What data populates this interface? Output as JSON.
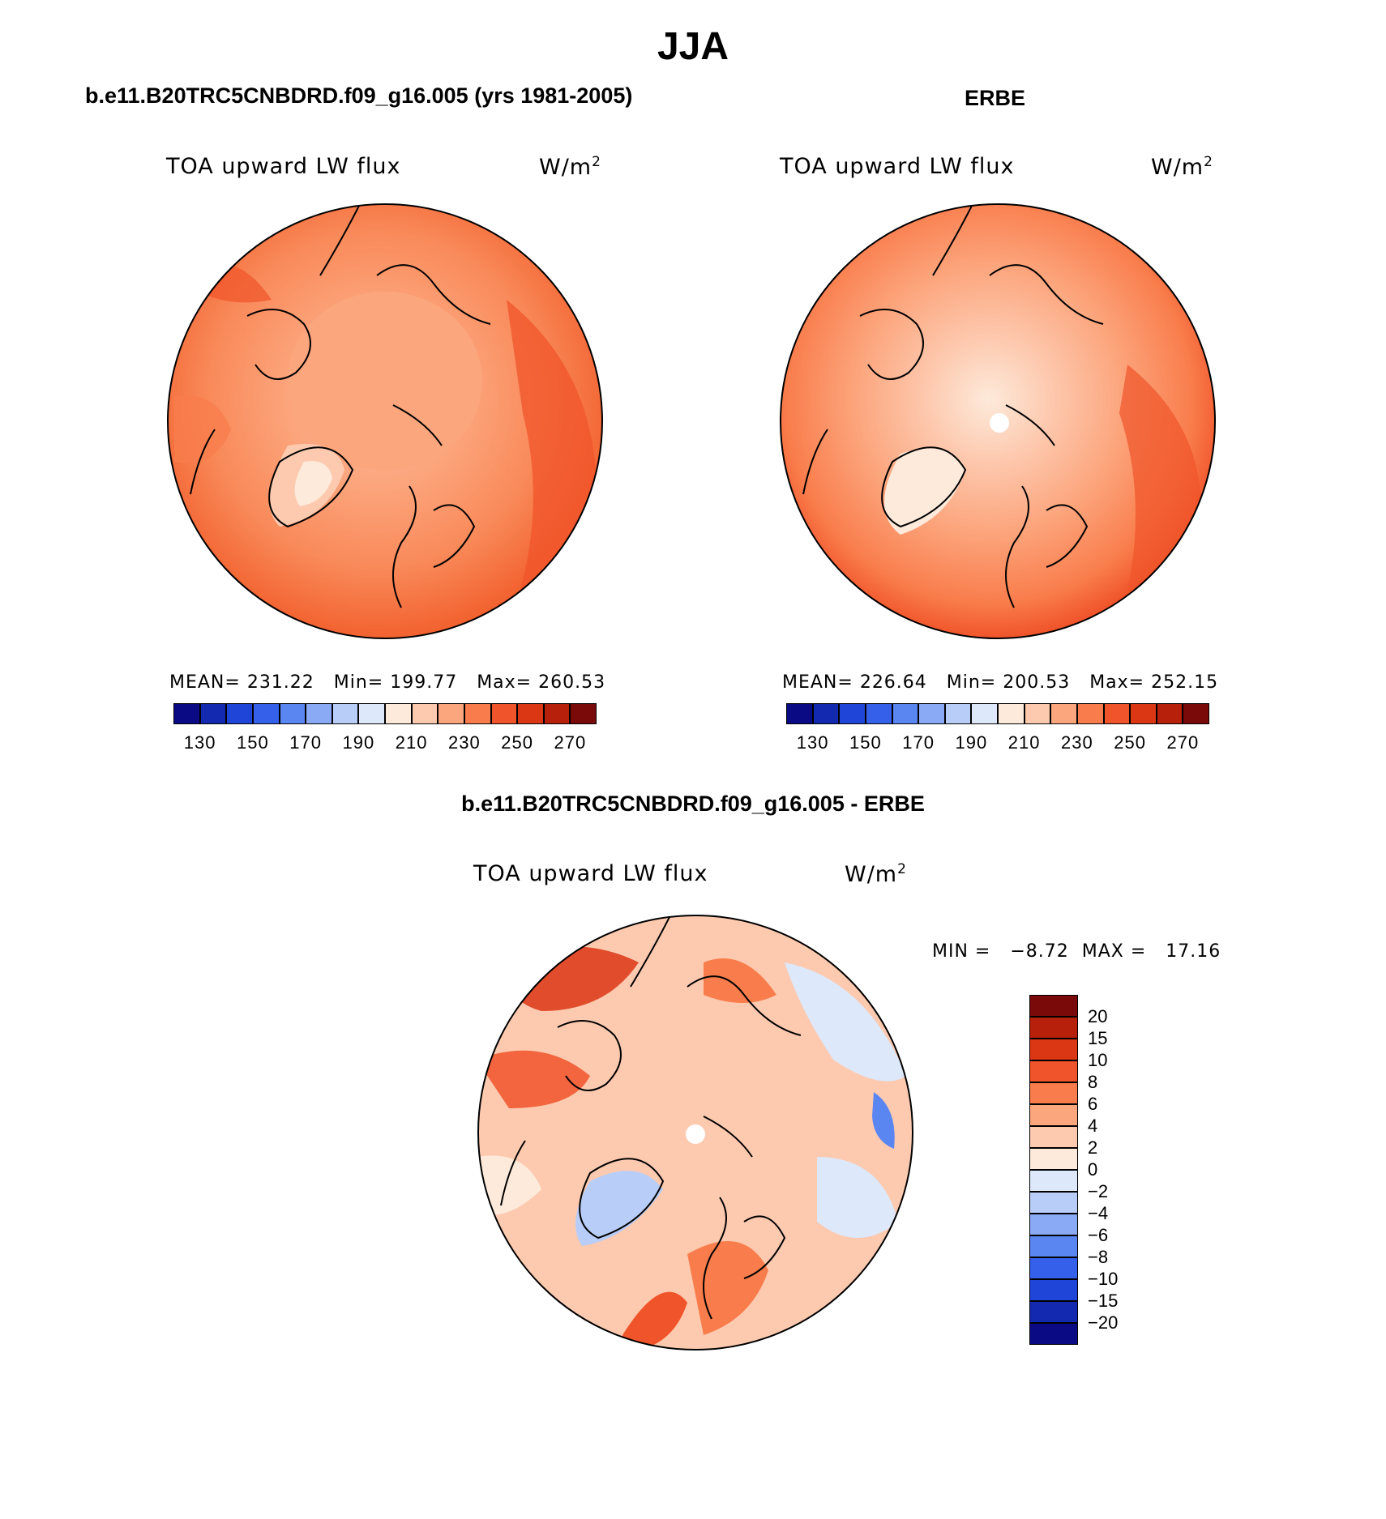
{
  "figure": {
    "title": "JJA"
  },
  "panels": {
    "model": {
      "title": "b.e11.B20TRC5CNBDRD.f09_g16.005 (yrs 1981-2005)",
      "variable": "TOA upward LW flux",
      "units_base": "W/m",
      "units_exp": "2",
      "stats": "MEAN= 231.22   Min= 199.77   Max= 260.53"
    },
    "obs": {
      "title": "ERBE",
      "variable": "TOA upward LW flux",
      "units_base": "W/m",
      "units_exp": "2",
      "stats": "MEAN= 226.64   Min= 200.53   Max= 252.15"
    },
    "diff": {
      "title": "b.e11.B20TRC5CNBDRD.f09_g16.005 - ERBE",
      "variable": "TOA upward LW flux",
      "units_base": "W/m",
      "units_exp": "2",
      "stats": "MIN =   −8.72  MAX =   17.16"
    }
  },
  "colorbars": {
    "absolute": {
      "labels": [
        "130",
        "150",
        "170",
        "190",
        "210",
        "230",
        "250",
        "270"
      ],
      "colors": [
        "#0a0a85",
        "#1329b0",
        "#1f45d8",
        "#3560ea",
        "#5a86f2",
        "#8aaaf5",
        "#b8cdf8",
        "#dde8fb",
        "#fdeadb",
        "#fdcab0",
        "#fca67e",
        "#f97d4c",
        "#f0542a",
        "#dc3715",
        "#b7200b",
        "#7a0a0a"
      ]
    },
    "difference": {
      "labels": [
        "20",
        "15",
        "10",
        "8",
        "6",
        "4",
        "2",
        "0",
        "−2",
        "−4",
        "−6",
        "−8",
        "−10",
        "−15",
        "−20"
      ],
      "colors": [
        "#7a0a0a",
        "#b7200b",
        "#dc3715",
        "#f0542a",
        "#f97d4c",
        "#fca67e",
        "#fdcab0",
        "#fdeadb",
        "#dde8fb",
        "#b8cdf8",
        "#8aaaf5",
        "#5a86f2",
        "#3560ea",
        "#1f45d8",
        "#1329b0",
        "#0a0a85"
      ]
    }
  }
}
